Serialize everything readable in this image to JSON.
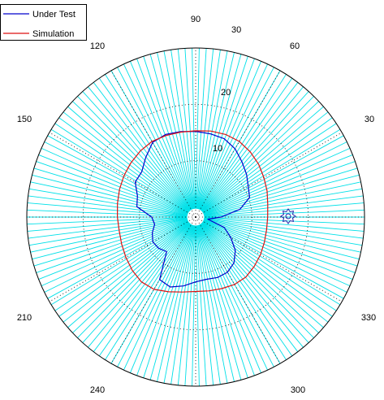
{
  "chart_data": {
    "type": "polar",
    "title": "",
    "angle_unit": "degrees",
    "angle_tick_labels": [
      "90",
      "60",
      "30",
      "330",
      "300",
      "240",
      "210",
      "150",
      "120"
    ],
    "radial_tick_labels": [
      "10",
      "20",
      "30"
    ],
    "rlim": [
      0,
      30
    ],
    "grid": true,
    "grid_color": "#00e0e8",
    "legend_placement": "top-left",
    "series": [
      {
        "name": "Under Test",
        "color": "#0000cc",
        "theta": [
          0,
          10,
          20,
          30,
          40,
          50,
          60,
          70,
          80,
          90,
          100,
          110,
          120,
          130,
          140,
          150,
          160,
          170,
          180,
          190,
          200,
          210,
          220,
          230,
          240,
          250,
          260,
          270,
          280,
          290,
          300,
          310,
          320,
          330,
          340,
          350,
          360
        ],
        "r": [
          4.5,
          8.0,
          10.2,
          10.8,
          11.8,
          12.8,
          14.0,
          14.8,
          15.0,
          15.2,
          15.4,
          15.6,
          15.3,
          13.8,
          12.5,
          12.4,
          11.0,
          10.6,
          7.8,
          7.4,
          8.2,
          8.8,
          8.6,
          8.0,
          12.8,
          13.2,
          12.4,
          11.5,
          11.2,
          11.4,
          11.3,
          10.6,
          9.2,
          7.2,
          5.4,
          2.2,
          4.5
        ]
      },
      {
        "name": "Simulation",
        "color": "#dd1111",
        "theta": [
          0,
          10,
          20,
          30,
          40,
          50,
          60,
          70,
          80,
          90,
          100,
          110,
          120,
          130,
          140,
          150,
          160,
          170,
          180,
          190,
          200,
          210,
          220,
          230,
          240,
          250,
          260,
          270,
          280,
          290,
          300,
          310,
          320,
          330,
          340,
          350,
          360
        ],
        "r": [
          12.8,
          13.0,
          13.5,
          14.0,
          14.6,
          15.1,
          15.5,
          15.6,
          15.5,
          15.3,
          15.3,
          15.4,
          15.5,
          15.3,
          15.0,
          14.7,
          14.4,
          14.1,
          13.9,
          13.8,
          14.0,
          14.3,
          14.7,
          15.0,
          14.8,
          14.1,
          13.5,
          13.2,
          13.3,
          13.5,
          13.8,
          13.9,
          13.6,
          13.3,
          13.0,
          12.8,
          12.8
        ]
      }
    ]
  }
}
